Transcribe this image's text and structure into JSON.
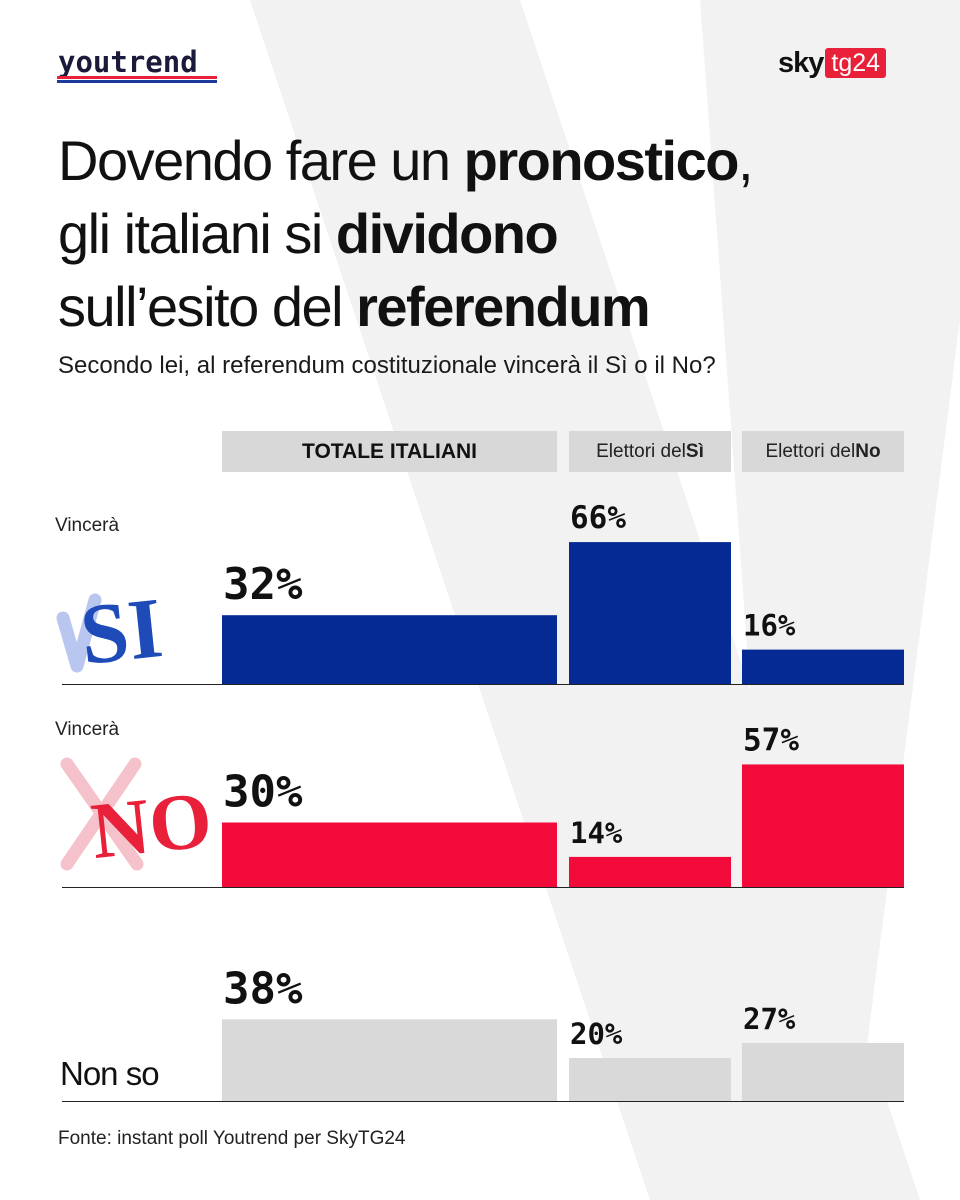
{
  "header": {
    "brand_left": "youtrend",
    "brand_right_sky": "sky",
    "brand_right_tg": "tg24",
    "title_line1_a": "Dovendo fare un ",
    "title_line1_b": "pronostico",
    "title_line1_c": ",",
    "title_line2_a": "gli italiani si ",
    "title_line2_b": "dividono",
    "title_line3_a": "sull’esito del ",
    "title_line3_b": "referendum",
    "subtitle": "Secondo lei, al referendum costituzionale vincerà il Sì o il No?"
  },
  "rows": {
    "si_prefix": "Vincerà",
    "si_icon": "SI",
    "no_prefix": "Vincerà",
    "no_icon": "NO",
    "nonso": "Non so"
  },
  "columns": {
    "totale": "TOTALE ITALIANI",
    "si_prefix": "Elettori del ",
    "si_bold": "Sì",
    "no_prefix": "Elettori del ",
    "no_bold": "No"
  },
  "chart_data": {
    "type": "bar",
    "title": "Secondo lei, al referendum costituzionale vincerà il Sì o il No?",
    "categories": [
      "Vincerà SI",
      "Vincerà NO",
      "Non so"
    ],
    "groups": [
      "TOTALE ITALIANI",
      "Elettori del Sì",
      "Elettori del No"
    ],
    "series": [
      {
        "name": "TOTALE ITALIANI",
        "values": [
          32,
          30,
          38
        ]
      },
      {
        "name": "Elettori del Sì",
        "values": [
          66,
          14,
          20
        ]
      },
      {
        "name": "Elettori del No",
        "values": [
          16,
          57,
          27
        ]
      }
    ],
    "value_labels": [
      [
        "32%",
        "30%",
        "38%"
      ],
      [
        "66%",
        "14%",
        "20%"
      ],
      [
        "16%",
        "57%",
        "27%"
      ]
    ],
    "unit": "%",
    "colors": {
      "si": "#062a94",
      "no": "#f20a3a",
      "nonso": "#d9d9d9"
    }
  },
  "footer": {
    "source": "Fonte: instant poll Youtrend per SkyTG24"
  }
}
